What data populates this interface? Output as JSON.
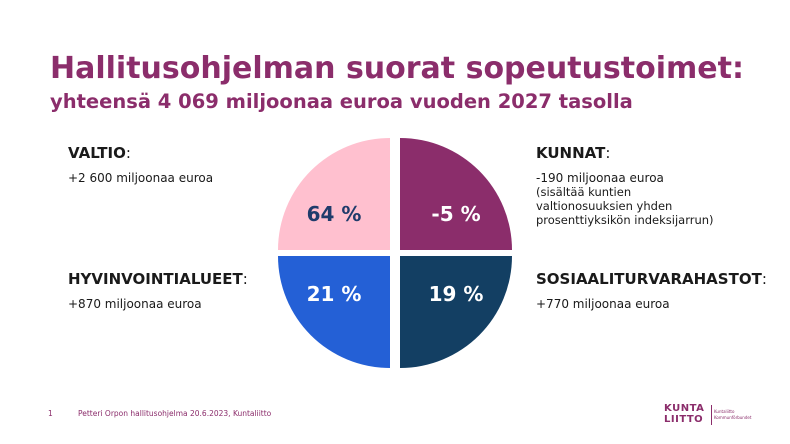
{
  "title": "Hallitusohjelman suorat sopeutustoimet:",
  "subtitle": "yhteensä 4 069 miljoonaa euroa vuoden 2027 tasolla",
  "colors": {
    "accent": "#8b2d6b",
    "valtio": "#ffc0cf",
    "kunnat": "#8b2d6b",
    "hyvinvointialueet": "#2460d6",
    "sosiaaliturvarahastot": "#133f63"
  },
  "blocks": {
    "valtio": {
      "name": "VALTIO",
      "colon": ":",
      "amount": "+2 600 miljoonaa euroa"
    },
    "kunnat": {
      "name": "KUNNAT",
      "colon": ":",
      "amount": "-190 miljoonaa euroa",
      "note": "(sisältää kuntien\nvaltionosuuksien yhden\nprosenttiyksikön indeksijarrun)"
    },
    "hyvinvointialueet": {
      "name": "HYVINVOINTIALUEET",
      "colon": ":",
      "amount": "+870 miljoonaa euroa"
    },
    "sosiaaliturvarahastot": {
      "name": "SOSIAALITURVARAHASTOT",
      "colon": ":",
      "amount": "+770 miljoonaa euroa"
    }
  },
  "quadrants": [
    {
      "id": "valtio",
      "label": "64 %",
      "value": 64,
      "fill": "#ffc0cf",
      "text_color": "#1f3b6b"
    },
    {
      "id": "kunnat",
      "label": "-5 %",
      "value": -5,
      "fill": "#8b2d6b",
      "text_color": "#ffffff"
    },
    {
      "id": "hyvinvointialueet",
      "label": "21 %",
      "value": 21,
      "fill": "#2460d6",
      "text_color": "#ffffff"
    },
    {
      "id": "sosiaaliturvarahastot",
      "label": "19 %",
      "value": 19,
      "fill": "#133f63",
      "text_color": "#ffffff"
    }
  ],
  "footer": {
    "page": "1",
    "text": "Petteri Orpon hallitusohjelma  20.6.2023, Kuntaliitto"
  },
  "logo": {
    "line1": "KUNTA",
    "line2": "LIITTO",
    "tag1": "Kuntaliitto",
    "tag2": "Kommunförbundet"
  }
}
